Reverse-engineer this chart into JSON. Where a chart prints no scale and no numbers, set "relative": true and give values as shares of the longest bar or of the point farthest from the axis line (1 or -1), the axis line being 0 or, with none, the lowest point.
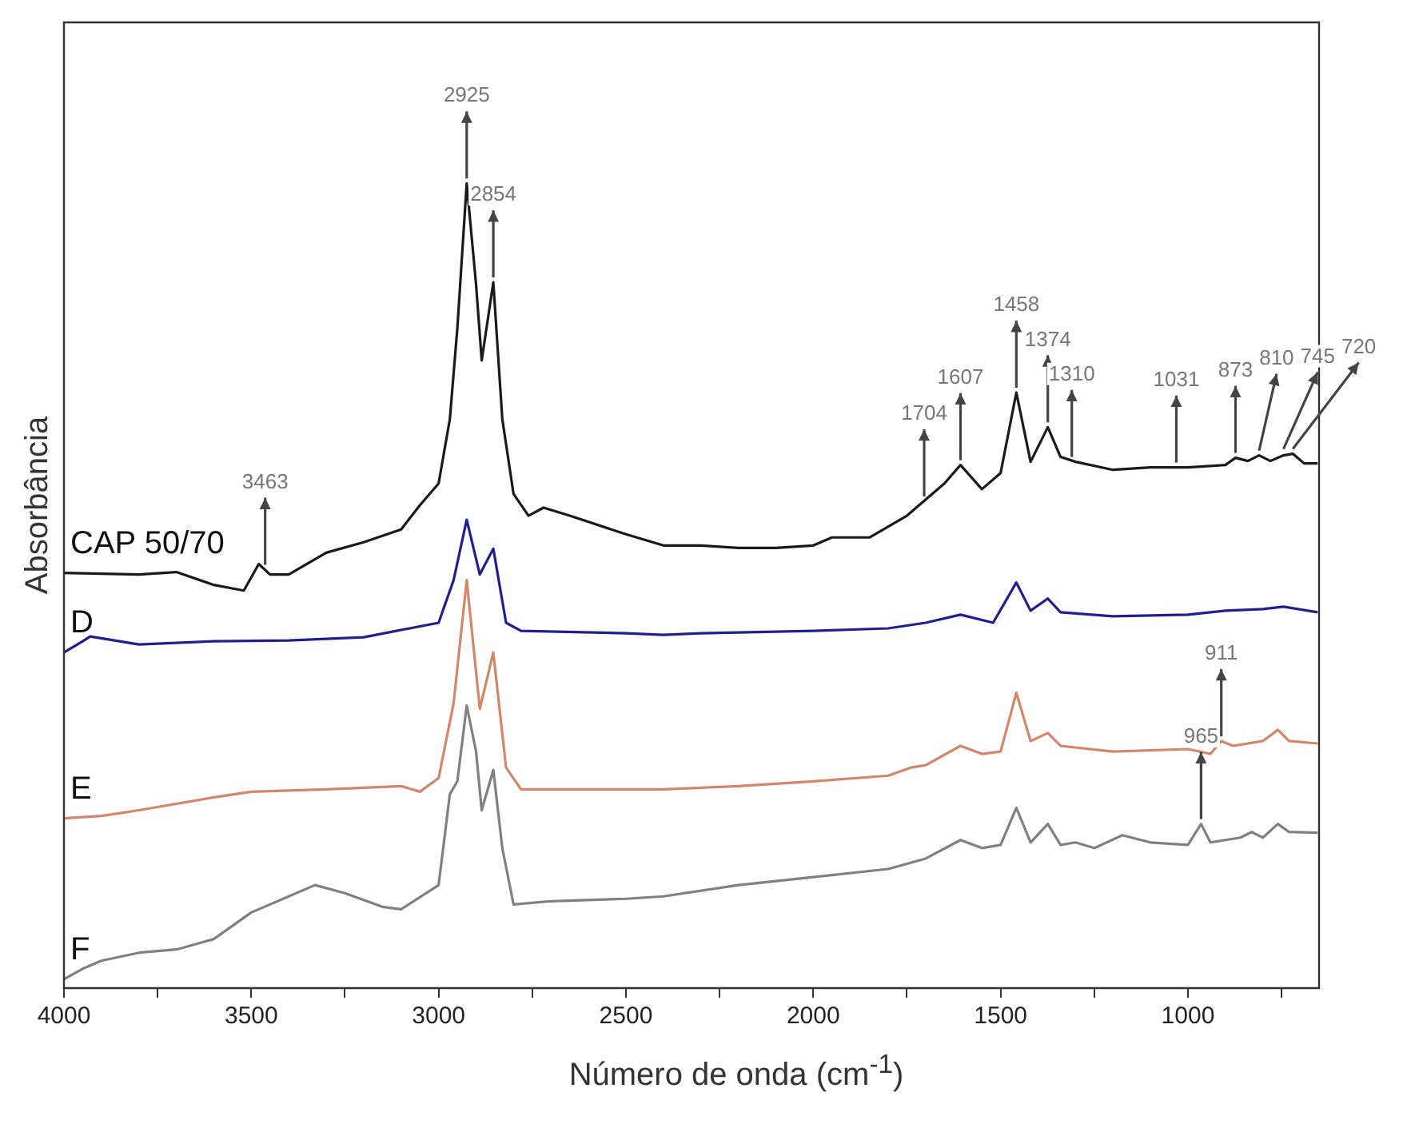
{
  "chart_data": {
    "type": "line",
    "relative": true,
    "xlabel": "Número de onda (cm$^{-1}$)",
    "ylabel": "Absorbância",
    "xlim": [
      4000,
      650
    ],
    "xticks": [
      4000,
      {
        "value": 3750,
        "label": null
      },
      3500,
      {
        "value": 3250,
        "label": null
      },
      3000,
      {
        "value": 2750,
        "label": null
      },
      2500,
      {
        "value": 2250,
        "label": null
      },
      2000,
      {
        "value": 1750,
        "label": null
      },
      1500,
      {
        "value": 1250,
        "label": null
      },
      1000,
      {
        "value": 750,
        "label": null
      }
    ],
    "legend": false,
    "marker": "none",
    "line_style": "solid",
    "series": [
      {
        "name": "CAP 50/70",
        "color": "#1a1a1a",
        "x": [
          4000,
          3800,
          3700,
          3600,
          3520,
          3480,
          3450,
          3400,
          3300,
          3200,
          3100,
          3050,
          3000,
          2970,
          2950,
          2925,
          2900,
          2885,
          2854,
          2830,
          2800,
          2760,
          2720,
          2650,
          2500,
          2400,
          2300,
          2200,
          2100,
          2000,
          1950,
          1850,
          1750,
          1650,
          1607,
          1550,
          1500,
          1458,
          1420,
          1374,
          1340,
          1300,
          1200,
          1100,
          1000,
          900,
          873,
          840,
          810,
          780,
          745,
          720,
          690,
          654
        ],
        "values": [
          0.516,
          0.514,
          0.517,
          0.501,
          0.494,
          0.527,
          0.514,
          0.514,
          0.541,
          0.554,
          0.57,
          0.6,
          0.627,
          0.707,
          0.82,
          1.0,
          0.874,
          0.78,
          0.877,
          0.707,
          0.614,
          0.587,
          0.597,
          0.587,
          0.564,
          0.55,
          0.55,
          0.547,
          0.547,
          0.55,
          0.56,
          0.56,
          0.587,
          0.627,
          0.65,
          0.62,
          0.64,
          0.74,
          0.654,
          0.697,
          0.66,
          0.654,
          0.644,
          0.647,
          0.647,
          0.65,
          0.659,
          0.655,
          0.662,
          0.655,
          0.662,
          0.664,
          0.652,
          0.652
        ]
      },
      {
        "name": "D",
        "color": "#1f1f8f",
        "x": [
          4000,
          3950,
          3930,
          3800,
          3600,
          3400,
          3200,
          3000,
          2960,
          2925,
          2890,
          2854,
          2820,
          2780,
          2500,
          2400,
          2300,
          2000,
          1800,
          1700,
          1607,
          1520,
          1458,
          1420,
          1374,
          1340,
          1200,
          1000,
          900,
          800,
          745,
          654
        ],
        "values": [
          0.417,
          0.431,
          0.437,
          0.427,
          0.431,
          0.432,
          0.436,
          0.454,
          0.507,
          0.582,
          0.514,
          0.546,
          0.454,
          0.444,
          0.441,
          0.439,
          0.441,
          0.444,
          0.447,
          0.454,
          0.464,
          0.454,
          0.504,
          0.469,
          0.484,
          0.467,
          0.462,
          0.464,
          0.469,
          0.471,
          0.474,
          0.467
        ]
      },
      {
        "name": "E",
        "color": "#d4866a",
        "x": [
          4000,
          3900,
          3800,
          3600,
          3500,
          3300,
          3100,
          3050,
          3000,
          2960,
          2925,
          2890,
          2854,
          2820,
          2780,
          2500,
          2400,
          2200,
          2000,
          1800,
          1740,
          1700,
          1607,
          1550,
          1500,
          1458,
          1420,
          1374,
          1340,
          1200,
          1000,
          940,
          911,
          880,
          800,
          760,
          730,
          654
        ],
        "values": [
          0.211,
          0.214,
          0.221,
          0.237,
          0.244,
          0.247,
          0.251,
          0.244,
          0.261,
          0.354,
          0.507,
          0.347,
          0.417,
          0.274,
          0.247,
          0.247,
          0.247,
          0.251,
          0.257,
          0.264,
          0.274,
          0.277,
          0.301,
          0.291,
          0.294,
          0.367,
          0.307,
          0.317,
          0.301,
          0.294,
          0.297,
          0.291,
          0.307,
          0.301,
          0.307,
          0.321,
          0.307,
          0.304
        ]
      },
      {
        "name": "F",
        "color": "#808080",
        "x": [
          4000,
          3950,
          3900,
          3800,
          3700,
          3600,
          3500,
          3400,
          3330,
          3250,
          3150,
          3100,
          3000,
          2970,
          2950,
          2925,
          2900,
          2885,
          2854,
          2830,
          2800,
          2700,
          2500,
          2400,
          2200,
          2000,
          1800,
          1700,
          1607,
          1550,
          1500,
          1458,
          1420,
          1374,
          1340,
          1300,
          1250,
          1175,
          1150,
          1100,
          1000,
          965,
          940,
          900,
          860,
          830,
          800,
          760,
          730,
          654
        ],
        "values": [
          0.011,
          0.024,
          0.034,
          0.044,
          0.048,
          0.061,
          0.094,
          0.114,
          0.128,
          0.118,
          0.101,
          0.098,
          0.128,
          0.241,
          0.257,
          0.351,
          0.294,
          0.221,
          0.271,
          0.174,
          0.104,
          0.108,
          0.111,
          0.114,
          0.128,
          0.138,
          0.148,
          0.161,
          0.184,
          0.174,
          0.178,
          0.224,
          0.181,
          0.204,
          0.178,
          0.181,
          0.174,
          0.19,
          0.187,
          0.181,
          0.178,
          0.204,
          0.181,
          0.184,
          0.187,
          0.194,
          0.187,
          0.204,
          0.194,
          0.193
        ]
      }
    ],
    "annotations": [
      {
        "text": "3463",
        "x": 3463,
        "y": 0.52
      },
      {
        "text": "2925",
        "x": 2925,
        "y": 1.0
      },
      {
        "text": "2854",
        "x": 2854,
        "y": 0.877
      },
      {
        "text": "1704",
        "x": 1704,
        "y": 0.605
      },
      {
        "text": "1607",
        "x": 1607,
        "y": 0.65
      },
      {
        "text": "1458",
        "x": 1458,
        "y": 0.74
      },
      {
        "text": "1374",
        "x": 1374,
        "y": 0.697
      },
      {
        "text": "1310",
        "x": 1310,
        "y": 0.654
      },
      {
        "text": "1031",
        "x": 1031,
        "y": 0.647
      },
      {
        "text": "873",
        "x": 873,
        "y": 0.659
      },
      {
        "text": "810",
        "x": 810,
        "y": 0.662
      },
      {
        "text": "745",
        "x": 745,
        "y": 0.664
      },
      {
        "text": "720",
        "x": 720,
        "y": 0.664
      },
      {
        "text": "911",
        "x": 911,
        "y": 0.307
      },
      {
        "text": "965",
        "x": 965,
        "y": 0.204
      }
    ]
  }
}
